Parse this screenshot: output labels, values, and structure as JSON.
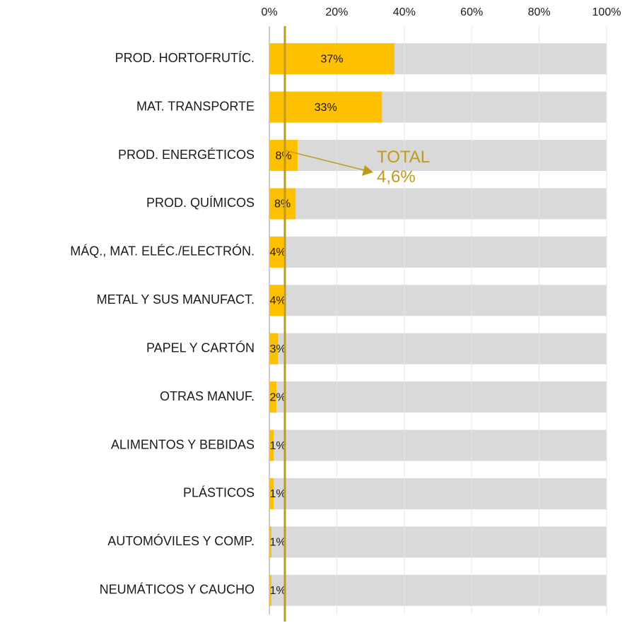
{
  "chart_data": {
    "type": "hbar",
    "categories": [
      "PROD. HORTOFRUTÍC.",
      "MAT. TRANSPORTE",
      "PROD. ENERGÉTICOS",
      "PROD. QUÍMICOS",
      "MÁQ., MAT. ELÉC./ELECTRÓN.",
      "METAL Y SUS MANUFACT.",
      "PAPEL Y CARTÓN",
      "OTRAS MANUF.",
      "ALIMENTOS Y BEBIDAS",
      "PLÁSTICOS",
      "AUTOMÓVILES Y COMP.",
      "NEUMÁTICOS Y CAUCHO"
    ],
    "values": [
      37.1,
      33.4,
      8.4,
      7.8,
      4.2,
      4.2,
      2.6,
      2.1,
      1.3,
      1.3,
      0.6,
      0.6
    ],
    "value_labels": [
      "37%",
      "33%",
      "8%",
      "8%",
      "4%",
      "4%",
      "3%",
      "2%",
      "1%",
      "1%",
      "1%",
      "1%"
    ],
    "color": "#ffc000",
    "background_color": "#d9d9d9",
    "xlim": [
      0,
      100
    ],
    "xticks": [
      {
        "value": 0,
        "label": "0%"
      },
      {
        "value": 20,
        "label": "20%"
      },
      {
        "value": 40,
        "label": "40%"
      },
      {
        "value": 60,
        "label": "60%"
      },
      {
        "value": 80,
        "label": "80%"
      },
      {
        "value": 100,
        "label": "100%"
      }
    ],
    "grid": true,
    "reference_line": {
      "value": 4.6,
      "label": "TOTAL",
      "value_label": "4,6%",
      "color": "#c09a1a"
    }
  }
}
